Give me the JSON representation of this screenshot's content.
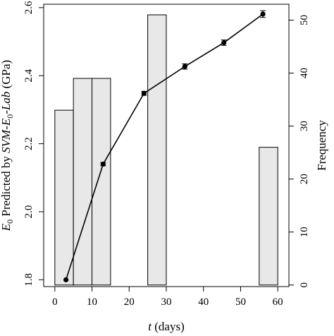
{
  "chart_data": {
    "type": "bar+line",
    "xlabel_italic": "t",
    "xlabel_rest": " (days)",
    "ylabel_left_parts": {
      "e": "E",
      "sub0": "0",
      "mid": " Predicted by ",
      "svm": "SVM-E",
      "sub0b": "0",
      "lab": "-Lab",
      "unit": " (GPa)"
    },
    "ylabel_right": "Frequency",
    "xlim": [
      -3,
      63
    ],
    "ylim_left": [
      1.78,
      2.61
    ],
    "ylim_right": [
      -0.3,
      53
    ],
    "x_ticks": [
      0,
      10,
      20,
      30,
      40,
      50,
      60
    ],
    "y_left_ticks": [
      "1.8",
      "2.0",
      "2.2",
      "2.4",
      "2.6"
    ],
    "y_right_ticks": [
      0,
      10,
      20,
      30,
      40,
      50
    ],
    "histogram": {
      "series_axis": "right",
      "bins": [
        {
          "x0": 0,
          "x1": 5,
          "count": 33
        },
        {
          "x0": 5,
          "x1": 10,
          "count": 39
        },
        {
          "x0": 10,
          "x1": 15,
          "count": 39
        },
        {
          "x0": 25,
          "x1": 30,
          "count": 51
        },
        {
          "x0": 55,
          "x1": 60,
          "count": 26
        }
      ],
      "fill": "#e8e8e8",
      "stroke": "#000000"
    },
    "line_series": {
      "series_axis": "left",
      "points": [
        {
          "x": 3,
          "y": 1.8,
          "err": 0.0
        },
        {
          "x": 13,
          "y": 2.14,
          "err": 0.005
        },
        {
          "x": 24,
          "y": 2.348,
          "err": 0.006
        },
        {
          "x": 35,
          "y": 2.427,
          "err": 0.008
        },
        {
          "x": 45.5,
          "y": 2.497,
          "err": 0.008
        },
        {
          "x": 56,
          "y": 2.581,
          "err": 0.01
        }
      ],
      "color": "#000000"
    }
  }
}
